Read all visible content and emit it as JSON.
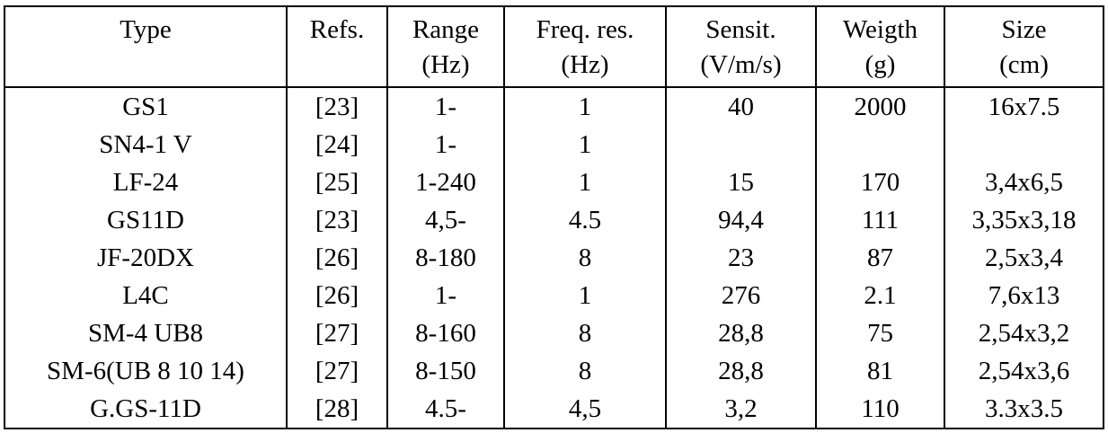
{
  "table": {
    "columns": [
      {
        "label": "Type",
        "unit": ""
      },
      {
        "label": "Refs.",
        "unit": ""
      },
      {
        "label": "Range",
        "unit": "(Hz)"
      },
      {
        "label": "Freq. res.",
        "unit": "(Hz)"
      },
      {
        "label": "Sensit.",
        "unit": "(V/m/s)"
      },
      {
        "label": "Weigth",
        "unit": "(g)"
      },
      {
        "label": "Size",
        "unit": "(cm)"
      }
    ],
    "rows": [
      [
        "GS1",
        "[23]",
        "1-",
        "1",
        "40",
        "2000",
        "16x7.5"
      ],
      [
        "SN4-1 V",
        "[24]",
        "1-",
        "1",
        "",
        "",
        ""
      ],
      [
        "LF-24",
        "[25]",
        "1-240",
        "1",
        "15",
        "170",
        "3,4x6,5"
      ],
      [
        "GS11D",
        "[23]",
        "4,5-",
        "4.5",
        "94,4",
        "111",
        "3,35x3,18"
      ],
      [
        "JF-20DX",
        "[26]",
        "8-180",
        "8",
        "23",
        "87",
        "2,5x3,4"
      ],
      [
        "L4C",
        "[26]",
        "1-",
        "1",
        "276",
        "2.1",
        "7,6x13"
      ],
      [
        "SM-4 UB8",
        "[27]",
        "8-160",
        "8",
        "28,8",
        "75",
        "2,54x3,2"
      ],
      [
        "SM-6(UB 8 10 14)",
        "[27]",
        "8-150",
        "8",
        "28,8",
        "81",
        "2,54x3,6"
      ],
      [
        "G.GS-11D",
        "[28]",
        "4.5-",
        "4,5",
        "3,2",
        "110",
        "3.3x3.5"
      ]
    ]
  },
  "colors": {
    "text": "#000000",
    "border": "#000000",
    "background": "#ffffff"
  }
}
